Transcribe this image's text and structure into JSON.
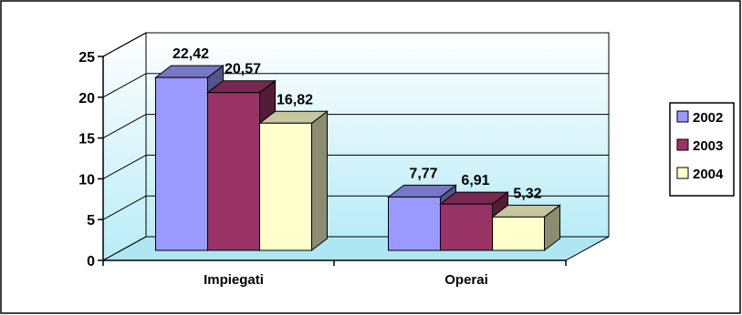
{
  "chart_data": {
    "type": "bar",
    "title": "",
    "xlabel": "",
    "ylabel": "",
    "categories": [
      "Impiegati",
      "Operai"
    ],
    "series": [
      {
        "name": "2002",
        "values": [
          22.42,
          7.77
        ],
        "labels": [
          "22,42",
          "7,77"
        ],
        "color": "#9999ff"
      },
      {
        "name": "2003",
        "values": [
          20.57,
          6.91
        ],
        "labels": [
          "20,57",
          "6,91"
        ],
        "color": "#993366"
      },
      {
        "name": "2004",
        "values": [
          16.82,
          5.32
        ],
        "labels": [
          "16,82",
          "5,32"
        ],
        "color": "#ffffcc"
      }
    ],
    "ylim": [
      0,
      25
    ],
    "yticks": [
      "0",
      "5",
      "10",
      "15",
      "20",
      "25"
    ],
    "grid": true,
    "legend_position": "right",
    "style": "3d-clustered-column"
  }
}
